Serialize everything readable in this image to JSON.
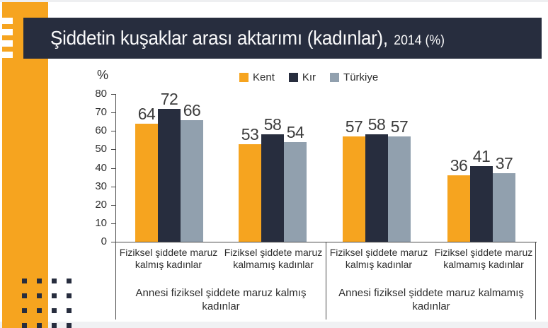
{
  "header": {
    "title_main": "Şiddetin kuşaklar arası aktarımı (kadınlar),",
    "title_suffix": "2014 (%)"
  },
  "colors": {
    "accent_orange": "#f6a41f",
    "dark_navy": "#272d3e",
    "gray_blue": "#91a0ae",
    "footer_gray": "#f0f1f3",
    "value_text": "#3c3c3c"
  },
  "chart_data": {
    "type": "bar",
    "title": "Şiddetin kuşaklar arası aktarımı (kadınlar), 2014 (%)",
    "unit_label": "%",
    "ylim": [
      0,
      80
    ],
    "yticks": [
      80,
      70,
      60,
      50,
      40,
      30,
      20,
      10,
      0
    ],
    "grid": false,
    "legend_position": "top",
    "series": [
      {
        "name": "Kent",
        "color": "#f6a41f",
        "values": [
          64,
          53,
          57,
          36
        ]
      },
      {
        "name": "Kır",
        "color": "#272d3e",
        "values": [
          72,
          58,
          58,
          41
        ]
      },
      {
        "name": "Türkiye",
        "color": "#91a0ae",
        "values": [
          66,
          54,
          57,
          37
        ]
      }
    ],
    "categories": [
      "Fiziksel şiddete maruz kalmış kadınlar",
      "Fiziksel şiddete maruz kalmamış kadınlar",
      "Fiziksel şiddete maruz kalmış kadınlar",
      "Fiziksel şiddete maruz kalmamış kadınlar"
    ],
    "category_groups": [
      {
        "label": "Annesi fiziksel şiddete maruz kalmış kadınlar",
        "span": [
          0,
          1
        ]
      },
      {
        "label": "Annesi fiziksel şiddete maruz kalmamış kadınlar",
        "span": [
          2,
          3
        ]
      }
    ]
  }
}
